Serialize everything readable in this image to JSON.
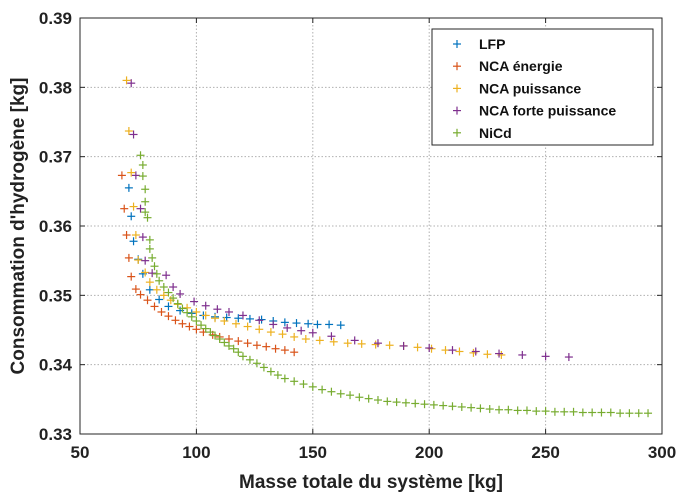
{
  "chart_data": {
    "type": "scatter",
    "xlabel": "Masse totale du système [kg]",
    "ylabel": "Consommation d'hydrogène [kg]",
    "xlim": [
      50,
      300
    ],
    "ylim": [
      0.33,
      0.39
    ],
    "xticks": [
      50,
      100,
      150,
      200,
      250,
      300
    ],
    "yticks": [
      0.33,
      0.34,
      0.35,
      0.36,
      0.37,
      0.38,
      0.39
    ],
    "xtick_labels": [
      "50",
      "100",
      "150",
      "200",
      "250",
      "300"
    ],
    "ytick_labels": [
      "0.33",
      "0.34",
      "0.35",
      "0.36",
      "0.37",
      "0.38",
      "0.39"
    ],
    "grid": true,
    "legend_position": "top-right",
    "marker": "+",
    "series": [
      {
        "name": "LFP",
        "color": "#0072bd",
        "points": [
          [
            71,
            0.3655
          ],
          [
            72,
            0.3614
          ],
          [
            73,
            0.3578
          ],
          [
            75,
            0.3552
          ],
          [
            77,
            0.3531
          ],
          [
            80,
            0.3508
          ],
          [
            84,
            0.3494
          ],
          [
            88,
            0.3484
          ],
          [
            93,
            0.3478
          ],
          [
            98,
            0.3474
          ],
          [
            103,
            0.3471
          ],
          [
            108,
            0.3469
          ],
          [
            113,
            0.3468
          ],
          [
            118,
            0.3467
          ],
          [
            123,
            0.3466
          ],
          [
            128,
            0.3465
          ],
          [
            133,
            0.3463
          ],
          [
            138,
            0.3461
          ],
          [
            143,
            0.346
          ],
          [
            148,
            0.3459
          ],
          [
            152,
            0.3458
          ],
          [
            157,
            0.3458
          ],
          [
            162,
            0.3457
          ]
        ]
      },
      {
        "name": "NCA énergie",
        "color": "#d95319",
        "points": [
          [
            68,
            0.3673
          ],
          [
            69,
            0.3625
          ],
          [
            70,
            0.3587
          ],
          [
            71,
            0.3554
          ],
          [
            72,
            0.3527
          ],
          [
            74,
            0.3509
          ],
          [
            76,
            0.3501
          ],
          [
            79,
            0.3493
          ],
          [
            82,
            0.3484
          ],
          [
            85,
            0.3476
          ],
          [
            88,
            0.347
          ],
          [
            91,
            0.3464
          ],
          [
            94,
            0.3459
          ],
          [
            97,
            0.3455
          ],
          [
            100,
            0.3451
          ],
          [
            103,
            0.3447
          ],
          [
            107,
            0.3443
          ],
          [
            110,
            0.344
          ],
          [
            114,
            0.3437
          ],
          [
            118,
            0.3434
          ],
          [
            122,
            0.3431
          ],
          [
            126,
            0.3428
          ],
          [
            130,
            0.3426
          ],
          [
            134,
            0.3423
          ],
          [
            138,
            0.3421
          ],
          [
            142,
            0.3418
          ]
        ]
      },
      {
        "name": "NCA puissance",
        "color": "#edb120",
        "points": [
          [
            70,
            0.381
          ],
          [
            71,
            0.3737
          ],
          [
            72,
            0.3677
          ],
          [
            73,
            0.3628
          ],
          [
            74,
            0.3587
          ],
          [
            75,
            0.3551
          ],
          [
            78,
            0.3533
          ],
          [
            80,
            0.3519
          ],
          [
            83,
            0.3508
          ],
          [
            86,
            0.35
          ],
          [
            89,
            0.3493
          ],
          [
            92,
            0.3487
          ],
          [
            96,
            0.3482
          ],
          [
            100,
            0.3476
          ],
          [
            104,
            0.3471
          ],
          [
            108,
            0.3467
          ],
          [
            112,
            0.3463
          ],
          [
            117,
            0.3459
          ],
          [
            122,
            0.3455
          ],
          [
            127,
            0.3451
          ],
          [
            132,
            0.3447
          ],
          [
            137,
            0.3444
          ],
          [
            142,
            0.344
          ],
          [
            147,
            0.3437
          ],
          [
            153,
            0.3435
          ],
          [
            159,
            0.3433
          ],
          [
            165,
            0.3431
          ],
          [
            171,
            0.343
          ],
          [
            177,
            0.3429
          ],
          [
            183,
            0.3428
          ],
          [
            189,
            0.3427
          ],
          [
            195,
            0.3425
          ],
          [
            201,
            0.3423
          ],
          [
            207,
            0.3421
          ],
          [
            213,
            0.3419
          ],
          [
            219,
            0.3417
          ],
          [
            225,
            0.3415
          ],
          [
            231,
            0.3414
          ]
        ]
      },
      {
        "name": "NCA forte puissance",
        "color": "#7e2f8e",
        "points": [
          [
            72,
            0.3806
          ],
          [
            73,
            0.3732
          ],
          [
            74,
            0.3673
          ],
          [
            76,
            0.3625
          ],
          [
            77,
            0.3584
          ],
          [
            78,
            0.355
          ],
          [
            81,
            0.3532
          ],
          [
            87,
            0.3529
          ],
          [
            90,
            0.3512
          ],
          [
            93,
            0.3502
          ],
          [
            99,
            0.3491
          ],
          [
            104,
            0.3485
          ],
          [
            109,
            0.348
          ],
          [
            114,
            0.3476
          ],
          [
            120,
            0.3471
          ],
          [
            127,
            0.3464
          ],
          [
            133,
            0.3458
          ],
          [
            139,
            0.3453
          ],
          [
            145,
            0.3449
          ],
          [
            150,
            0.3446
          ],
          [
            158,
            0.3441
          ],
          [
            168,
            0.3435
          ],
          [
            178,
            0.3431
          ],
          [
            189,
            0.3427
          ],
          [
            200,
            0.3424
          ],
          [
            210,
            0.3421
          ],
          [
            220,
            0.3419
          ],
          [
            230,
            0.3416
          ],
          [
            240,
            0.3414
          ],
          [
            250,
            0.3412
          ],
          [
            260,
            0.3411
          ]
        ]
      },
      {
        "name": "NiCd",
        "color": "#77ac30",
        "points": [
          [
            76,
            0.3702
          ],
          [
            77,
            0.3688
          ],
          [
            77,
            0.3672
          ],
          [
            78,
            0.3653
          ],
          [
            78,
            0.3635
          ],
          [
            78,
            0.362
          ],
          [
            79,
            0.3612
          ],
          [
            80,
            0.358
          ],
          [
            80,
            0.3567
          ],
          [
            81,
            0.3554
          ],
          [
            82,
            0.3542
          ],
          [
            83,
            0.3531
          ],
          [
            84,
            0.3521
          ],
          [
            86,
            0.3512
          ],
          [
            88,
            0.3504
          ],
          [
            90,
            0.3496
          ],
          [
            92,
            0.3488
          ],
          [
            94,
            0.3481
          ],
          [
            96,
            0.3475
          ],
          [
            98,
            0.3469
          ],
          [
            100,
            0.3463
          ],
          [
            102,
            0.3457
          ],
          [
            104,
            0.3452
          ],
          [
            106,
            0.3447
          ],
          [
            108,
            0.3442
          ],
          [
            110,
            0.3437
          ],
          [
            112,
            0.3432
          ],
          [
            114,
            0.3427
          ],
          [
            116,
            0.3423
          ],
          [
            118,
            0.3418
          ],
          [
            120,
            0.3412
          ],
          [
            123,
            0.3407
          ],
          [
            126,
            0.3402
          ],
          [
            129,
            0.3396
          ],
          [
            132,
            0.339
          ],
          [
            135,
            0.3385
          ],
          [
            138,
            0.338
          ],
          [
            142,
            0.3376
          ],
          [
            146,
            0.3372
          ],
          [
            150,
            0.3368
          ],
          [
            154,
            0.3364
          ],
          [
            158,
            0.3361
          ],
          [
            162,
            0.3358
          ],
          [
            166,
            0.3356
          ],
          [
            170,
            0.3353
          ],
          [
            174,
            0.3351
          ],
          [
            178,
            0.3349
          ],
          [
            182,
            0.3347
          ],
          [
            186,
            0.3346
          ],
          [
            190,
            0.3345
          ],
          [
            194,
            0.3344
          ],
          [
            198,
            0.3343
          ],
          [
            202,
            0.3342
          ],
          [
            206,
            0.3341
          ],
          [
            210,
            0.334
          ],
          [
            214,
            0.3339
          ],
          [
            218,
            0.3338
          ],
          [
            222,
            0.3337
          ],
          [
            226,
            0.3336
          ],
          [
            230,
            0.3335
          ],
          [
            234,
            0.3335
          ],
          [
            238,
            0.3334
          ],
          [
            242,
            0.3334
          ],
          [
            246,
            0.3333
          ],
          [
            250,
            0.3333
          ],
          [
            254,
            0.3332
          ],
          [
            258,
            0.3332
          ],
          [
            262,
            0.3332
          ],
          [
            266,
            0.3331
          ],
          [
            270,
            0.3331
          ],
          [
            274,
            0.3331
          ],
          [
            278,
            0.3331
          ],
          [
            282,
            0.333
          ],
          [
            286,
            0.333
          ],
          [
            290,
            0.333
          ],
          [
            294,
            0.333
          ]
        ]
      }
    ]
  }
}
